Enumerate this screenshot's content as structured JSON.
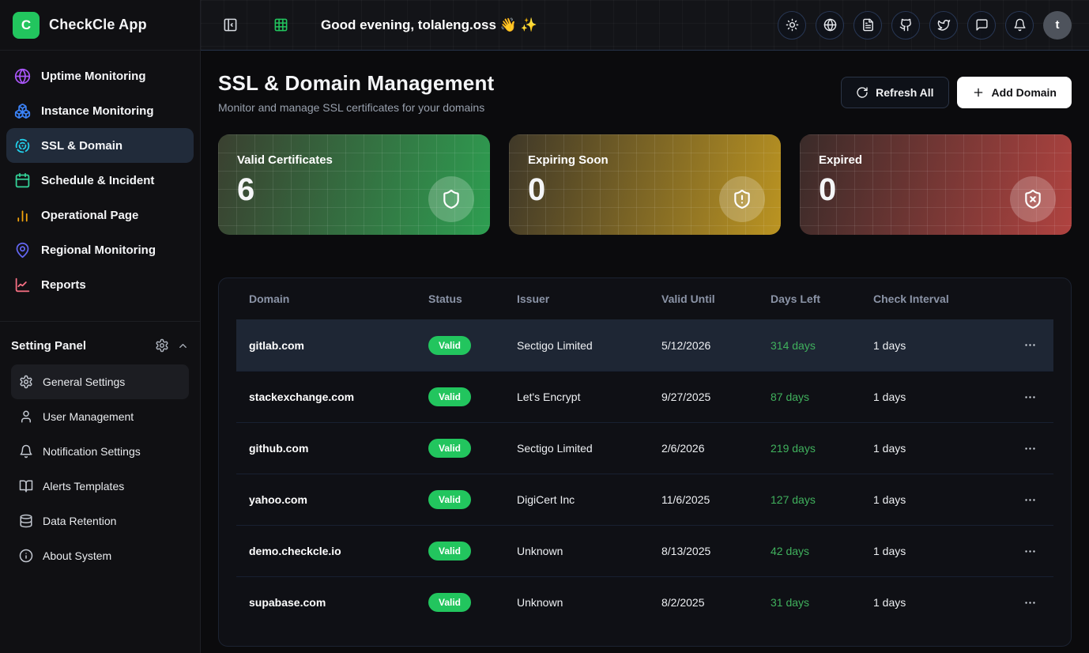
{
  "colors": {
    "brand_green": "#22c55e",
    "valid_badge_green": "#22c55e",
    "days_left_green": "#40b15d",
    "sidebar_active_bg": "#212b3a",
    "card_valid_gradient": [
      "#3a4030",
      "#2e9e51"
    ],
    "card_expiring_gradient": [
      "#3f3828",
      "#bb9422"
    ],
    "card_expired_gradient": [
      "#3a2b29",
      "#b04340"
    ]
  },
  "app": {
    "name": "CheckCle App",
    "logo_letter": "C"
  },
  "sidebar": {
    "nav_items": [
      {
        "label": "Uptime Monitoring",
        "icon": "globe",
        "color": "#a855f7",
        "active": false
      },
      {
        "label": "Instance Monitoring",
        "icon": "boxes",
        "color": "#3b82f6",
        "active": false
      },
      {
        "label": "SSL & Domain",
        "icon": "radar",
        "color": "#22d3ee",
        "active": true
      },
      {
        "label": "Schedule & Incident",
        "icon": "calendar",
        "color": "#34d399",
        "active": false
      },
      {
        "label": "Operational Page",
        "icon": "bar-chart",
        "color": "#f5a50b",
        "active": false
      },
      {
        "label": "Regional Monitoring",
        "icon": "map-pin",
        "color": "#6366f1",
        "active": false
      },
      {
        "label": "Reports",
        "icon": "line-chart",
        "color": "#fb7185",
        "active": false
      }
    ],
    "settings": {
      "title": "Setting Panel",
      "items": [
        {
          "label": "General Settings",
          "icon": "gear",
          "active": true
        },
        {
          "label": "User Management",
          "icon": "user",
          "active": false
        },
        {
          "label": "Notification Settings",
          "icon": "bell",
          "active": false
        },
        {
          "label": "Alerts Templates",
          "icon": "book-open",
          "active": false
        },
        {
          "label": "Data Retention",
          "icon": "database",
          "active": false
        },
        {
          "label": "About System",
          "icon": "info",
          "active": false
        }
      ]
    }
  },
  "topbar": {
    "greeting": "Good evening, tolaleng.oss 👋 ✨",
    "left_icons": [
      {
        "icon": "panel-left"
      },
      {
        "icon": "grid",
        "color": "#22c55e"
      }
    ],
    "right_icons": [
      {
        "icon": "sun"
      },
      {
        "icon": "globe2"
      },
      {
        "icon": "file-text"
      },
      {
        "icon": "github"
      },
      {
        "icon": "twitter"
      },
      {
        "icon": "message"
      },
      {
        "icon": "bell"
      }
    ],
    "avatar_letter": "t"
  },
  "page": {
    "title": "SSL & Domain Management",
    "subtitle": "Monitor and manage SSL certificates for your domains",
    "refresh_button": "Refresh All",
    "add_button": "Add Domain"
  },
  "stats": [
    {
      "label": "Valid Certificates",
      "value": "6",
      "icon": "shield",
      "gradient": [
        "#3a4030",
        "#2e9e51"
      ]
    },
    {
      "label": "Expiring Soon",
      "value": "0",
      "icon": "shield-alert",
      "gradient": [
        "#3f3828",
        "#bb9422"
      ]
    },
    {
      "label": "Expired",
      "value": "0",
      "icon": "shield-x",
      "gradient": [
        "#3a2b29",
        "#b04340"
      ]
    }
  ],
  "table": {
    "columns": [
      "Domain",
      "Status",
      "Issuer",
      "Valid Until",
      "Days Left",
      "Check Interval"
    ],
    "rows": [
      {
        "domain": "gitlab.com",
        "status": "Valid",
        "issuer": "Sectigo Limited",
        "valid_until": "5/12/2026",
        "days_left": "314 days",
        "check_interval": "1 days",
        "active": true
      },
      {
        "domain": "stackexchange.com",
        "status": "Valid",
        "issuer": "Let's Encrypt",
        "valid_until": "9/27/2025",
        "days_left": "87 days",
        "check_interval": "1 days",
        "active": false
      },
      {
        "domain": "github.com",
        "status": "Valid",
        "issuer": "Sectigo Limited",
        "valid_until": "2/6/2026",
        "days_left": "219 days",
        "check_interval": "1 days",
        "active": false
      },
      {
        "domain": "yahoo.com",
        "status": "Valid",
        "issuer": "DigiCert Inc",
        "valid_until": "11/6/2025",
        "days_left": "127 days",
        "check_interval": "1 days",
        "active": false
      },
      {
        "domain": "demo.checkcle.io",
        "status": "Valid",
        "issuer": "Unknown",
        "valid_until": "8/13/2025",
        "days_left": "42 days",
        "check_interval": "1 days",
        "active": false
      },
      {
        "domain": "supabase.com",
        "status": "Valid",
        "issuer": "Unknown",
        "valid_until": "8/2/2025",
        "days_left": "31 days",
        "check_interval": "1 days",
        "active": false
      }
    ]
  }
}
